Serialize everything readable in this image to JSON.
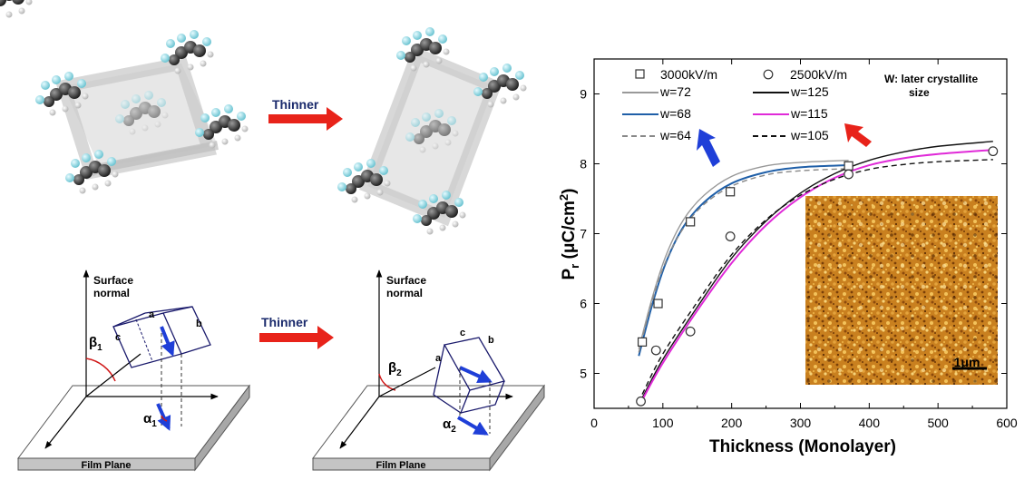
{
  "figure": {
    "molecule_panel": {
      "arrow_label": "Thinner"
    },
    "orientation_panel": {
      "arrow_label": "Thinner",
      "left": {
        "axis_label_line1": "Surface",
        "axis_label_line2": "normal",
        "cell_a": "a",
        "cell_b": "b",
        "cell_c": "c",
        "beta_sym": "β",
        "beta_sub": "1",
        "alpha_sym": "α",
        "alpha_sub": "1",
        "plane_label": "Film Plane"
      },
      "right": {
        "axis_label_line1": "Surface",
        "axis_label_line2": "normal",
        "cell_a": "a",
        "cell_b": "b",
        "cell_c": "c",
        "beta_sym": "β",
        "beta_sub": "2",
        "alpha_sym": "α",
        "alpha_sub": "2",
        "plane_label": "Film Plane"
      }
    },
    "inset": {
      "scale_label": "1μm"
    },
    "colors": {
      "blue_arrow": "#1f3fd8",
      "red_arrow": "#e8231a",
      "inset_orange": "#d4861c",
      "molecule_dark": "#3a3a3a",
      "molecule_fluorine": "#8fd3dc"
    }
  },
  "chart_data": {
    "type": "scatter",
    "xlabel": "Thickness (Monolayer)",
    "ylabel_main": "P",
    "ylabel_sub": "r",
    "ylabel_units": "(μC/cm",
    "ylabel_sup": "2",
    "ylabel_close": ")",
    "xlim": [
      0,
      600
    ],
    "ylim": [
      4.5,
      9.5
    ],
    "xticks": [
      0,
      100,
      200,
      300,
      400,
      500,
      600
    ],
    "yticks": [
      5,
      6,
      7,
      8,
      9
    ],
    "annotation": {
      "line1": "W: later crystallite",
      "line2": "size"
    },
    "series": [
      {
        "name": "3000kV/m",
        "marker": "square",
        "x": [
          70,
          93,
          140,
          198,
          370
        ],
        "y": [
          5.45,
          6.0,
          7.17,
          7.6,
          7.97
        ]
      },
      {
        "name": "2500kV/m",
        "marker": "circle",
        "x": [
          68,
          90,
          140,
          198,
          370,
          580
        ],
        "y": [
          4.6,
          5.33,
          5.6,
          6.96,
          7.85,
          8.18
        ]
      }
    ],
    "fits": [
      {
        "name": "w=72",
        "color": "#999999",
        "dash": "",
        "x": [
          65,
          85,
          105,
          130,
          160,
          200,
          250,
          300,
          370
        ],
        "y": [
          5.35,
          6.1,
          6.7,
          7.2,
          7.55,
          7.82,
          7.97,
          8.02,
          8.05
        ]
      },
      {
        "name": "w=68",
        "color": "#1f5fa8",
        "dash": "",
        "x": [
          65,
          85,
          105,
          130,
          160,
          200,
          250,
          300,
          370
        ],
        "y": [
          5.25,
          6.0,
          6.6,
          7.1,
          7.45,
          7.72,
          7.88,
          7.95,
          7.98
        ]
      },
      {
        "name": "w=64",
        "color": "#888888",
        "dash": "6,4",
        "x": [
          65,
          85,
          105,
          130,
          160,
          200,
          250,
          300,
          370
        ],
        "y": [
          5.3,
          6.05,
          6.62,
          7.08,
          7.42,
          7.68,
          7.84,
          7.9,
          7.93
        ]
      },
      {
        "name": "w=125",
        "color": "#111111",
        "dash": "",
        "x": [
          70,
          100,
          150,
          200,
          250,
          300,
          350,
          400,
          450,
          500,
          580
        ],
        "y": [
          4.65,
          5.2,
          5.95,
          6.65,
          7.18,
          7.58,
          7.86,
          8.05,
          8.17,
          8.25,
          8.32
        ]
      },
      {
        "name": "w=115",
        "color": "#e02ad8",
        "dash": "",
        "x": [
          70,
          100,
          150,
          200,
          250,
          300,
          350,
          400,
          450,
          500,
          580
        ],
        "y": [
          4.62,
          5.15,
          5.9,
          6.58,
          7.12,
          7.52,
          7.8,
          7.98,
          8.08,
          8.14,
          8.2
        ]
      },
      {
        "name": "w=105",
        "color": "#111111",
        "dash": "6,4",
        "x": [
          70,
          100,
          150,
          200,
          250,
          300,
          350,
          400,
          450,
          500,
          580
        ],
        "y": [
          4.7,
          5.28,
          6.02,
          6.7,
          7.2,
          7.55,
          7.78,
          7.92,
          7.99,
          8.03,
          8.06
        ]
      }
    ]
  }
}
